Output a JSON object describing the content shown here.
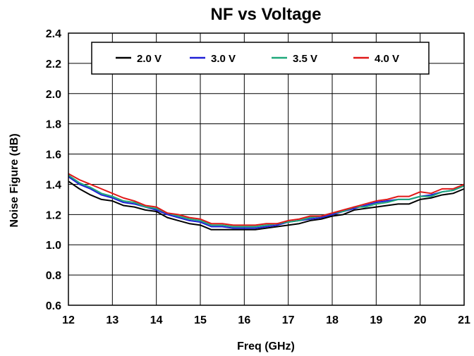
{
  "chart_data": {
    "type": "line",
    "title": "NF vs Voltage",
    "xlabel": "Freq (GHz)",
    "ylabel": "Noise Figure (dB)",
    "xlim": [
      12,
      21
    ],
    "ylim": [
      0.6,
      2.4
    ],
    "xticks": [
      "12",
      "13",
      "14",
      "15",
      "16",
      "17",
      "18",
      "19",
      "20",
      "21"
    ],
    "yticks": [
      "0.6",
      "0.8",
      "1.0",
      "1.2",
      "1.4",
      "1.6",
      "1.8",
      "2.0",
      "2.2",
      "2.4"
    ],
    "grid": true,
    "legend_position": "top",
    "x": [
      12.0,
      12.25,
      12.5,
      12.75,
      13.0,
      13.25,
      13.5,
      13.75,
      14.0,
      14.25,
      14.5,
      14.75,
      15.0,
      15.25,
      15.5,
      15.75,
      16.0,
      16.25,
      16.5,
      16.75,
      17.0,
      17.25,
      17.5,
      17.75,
      18.0,
      18.25,
      18.5,
      18.75,
      19.0,
      19.25,
      19.5,
      19.75,
      20.0,
      20.25,
      20.5,
      20.75,
      21.0
    ],
    "series": [
      {
        "name": "2.0 V",
        "color": "#000000",
        "values": [
          1.42,
          1.37,
          1.33,
          1.3,
          1.29,
          1.26,
          1.25,
          1.23,
          1.22,
          1.18,
          1.16,
          1.14,
          1.13,
          1.1,
          1.1,
          1.1,
          1.1,
          1.1,
          1.11,
          1.12,
          1.13,
          1.14,
          1.16,
          1.17,
          1.19,
          1.2,
          1.23,
          1.24,
          1.25,
          1.26,
          1.27,
          1.27,
          1.3,
          1.31,
          1.33,
          1.34,
          1.37
        ]
      },
      {
        "name": "3.0 V",
        "color": "#1f1fd6",
        "values": [
          1.45,
          1.4,
          1.37,
          1.33,
          1.31,
          1.28,
          1.27,
          1.25,
          1.23,
          1.2,
          1.18,
          1.16,
          1.15,
          1.12,
          1.12,
          1.11,
          1.11,
          1.11,
          1.12,
          1.13,
          1.15,
          1.16,
          1.17,
          1.18,
          1.2,
          1.22,
          1.24,
          1.26,
          1.28,
          1.29,
          1.3,
          1.3,
          1.32,
          1.33,
          1.35,
          1.36,
          1.39
        ]
      },
      {
        "name": "3.5 V",
        "color": "#1ea87a",
        "values": [
          1.46,
          1.41,
          1.38,
          1.34,
          1.32,
          1.29,
          1.28,
          1.25,
          1.24,
          1.21,
          1.19,
          1.17,
          1.16,
          1.13,
          1.13,
          1.12,
          1.12,
          1.12,
          1.13,
          1.14,
          1.15,
          1.16,
          1.18,
          1.19,
          1.21,
          1.22,
          1.25,
          1.25,
          1.27,
          1.28,
          1.3,
          1.3,
          1.32,
          1.32,
          1.35,
          1.36,
          1.39
        ]
      },
      {
        "name": "4.0 V",
        "color": "#e01818",
        "values": [
          1.47,
          1.43,
          1.4,
          1.37,
          1.34,
          1.31,
          1.29,
          1.26,
          1.25,
          1.21,
          1.2,
          1.18,
          1.17,
          1.14,
          1.14,
          1.13,
          1.13,
          1.13,
          1.14,
          1.14,
          1.16,
          1.17,
          1.19,
          1.19,
          1.21,
          1.23,
          1.25,
          1.27,
          1.29,
          1.3,
          1.32,
          1.32,
          1.35,
          1.34,
          1.37,
          1.37,
          1.4
        ]
      }
    ]
  }
}
